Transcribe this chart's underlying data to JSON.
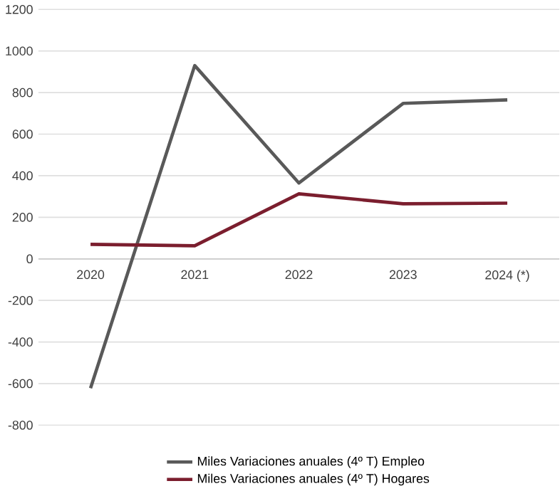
{
  "chart_data": {
    "type": "line",
    "categories": [
      "2020",
      "2021",
      "2022",
      "2023",
      "2024 (*)"
    ],
    "series": [
      {
        "name": "Miles Variaciones anuales (4º T) Empleo",
        "color": "#595959",
        "values": [
          -622,
          930,
          365,
          748,
          765
        ]
      },
      {
        "name": "Miles Variaciones anuales (4º T) Hogares",
        "color": "#7b1e2e",
        "values": [
          70,
          63,
          313,
          265,
          268
        ]
      }
    ],
    "ylim": [
      -800,
      1200
    ],
    "yticks": [
      -800,
      -600,
      -400,
      -200,
      0,
      200,
      400,
      600,
      800,
      1000,
      1200
    ],
    "grid": "y",
    "legend": "bottom",
    "marker": "none",
    "line_style": "solid"
  }
}
